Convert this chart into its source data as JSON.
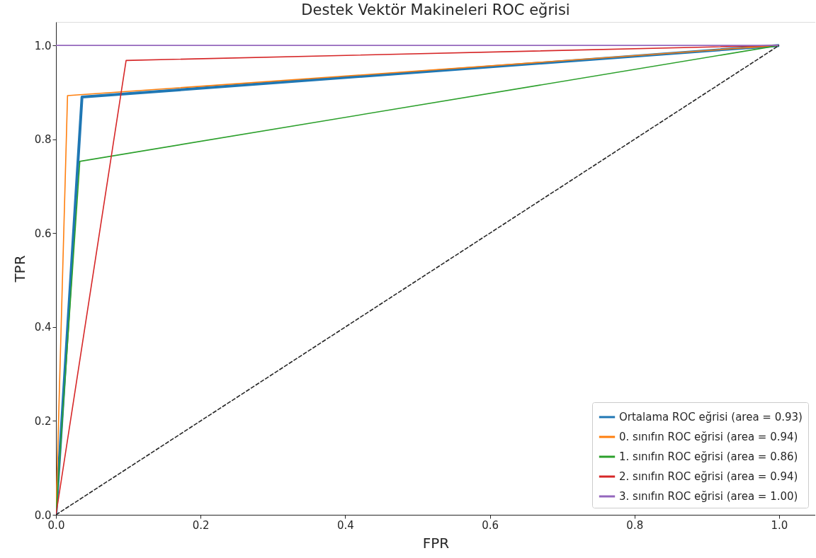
{
  "chart_data": {
    "type": "line",
    "title": "Destek Vektör Makineleri ROC eğrisi",
    "xlabel": "FPR",
    "ylabel": "TPR",
    "xlim": [
      0,
      1.05
    ],
    "ylim": [
      0,
      1.05
    ],
    "xticks": [
      {
        "value": 0,
        "label": "0.0"
      },
      {
        "value": 0.2,
        "label": "0.2"
      },
      {
        "value": 0.4,
        "label": "0.4"
      },
      {
        "value": 0.6,
        "label": "0.6"
      },
      {
        "value": 0.8,
        "label": "0.8"
      },
      {
        "value": 1,
        "label": "1.0"
      }
    ],
    "yticks": [
      {
        "value": 0,
        "label": "0.0"
      },
      {
        "value": 0.2,
        "label": "0.2"
      },
      {
        "value": 0.4,
        "label": "0.4"
      },
      {
        "value": 0.6,
        "label": "0.6"
      },
      {
        "value": 0.8,
        "label": "0.8"
      },
      {
        "value": 1,
        "label": "1.0"
      }
    ],
    "grid": false,
    "legend": "bottom right",
    "marker": "none",
    "series": [
      {
        "name": "Ortalama ROC eğrisi (area = 0.93)",
        "color": "#1f77b4",
        "x": [
          0,
          0.036,
          1
        ],
        "values": [
          0,
          0.89,
          1
        ]
      },
      {
        "name": "0. sınıfın ROC eğrisi (area = 0.94)",
        "color": "#ff7f0e",
        "x": [
          0,
          0.016,
          1
        ],
        "values": [
          0,
          0.893,
          1
        ]
      },
      {
        "name": "1. sınıfın ROC eğrisi (area = 0.86)",
        "color": "#2ca02c",
        "x": [
          0,
          0.033,
          1
        ],
        "values": [
          0,
          0.753,
          1
        ]
      },
      {
        "name": "2. sınıfın ROC eğrisi (area = 0.94)",
        "color": "#d62728",
        "x": [
          0,
          0.097,
          1
        ],
        "values": [
          0,
          0.968,
          1
        ]
      },
      {
        "name": "3. sınıfın ROC eğrisi (area = 1.00)",
        "color": "#9467bd",
        "x": [
          0,
          1
        ],
        "values": [
          1,
          1
        ]
      },
      {
        "color": "#262626",
        "x": [
          0,
          1
        ],
        "values": [
          0,
          1
        ],
        "line_style": "dashed"
      }
    ]
  }
}
